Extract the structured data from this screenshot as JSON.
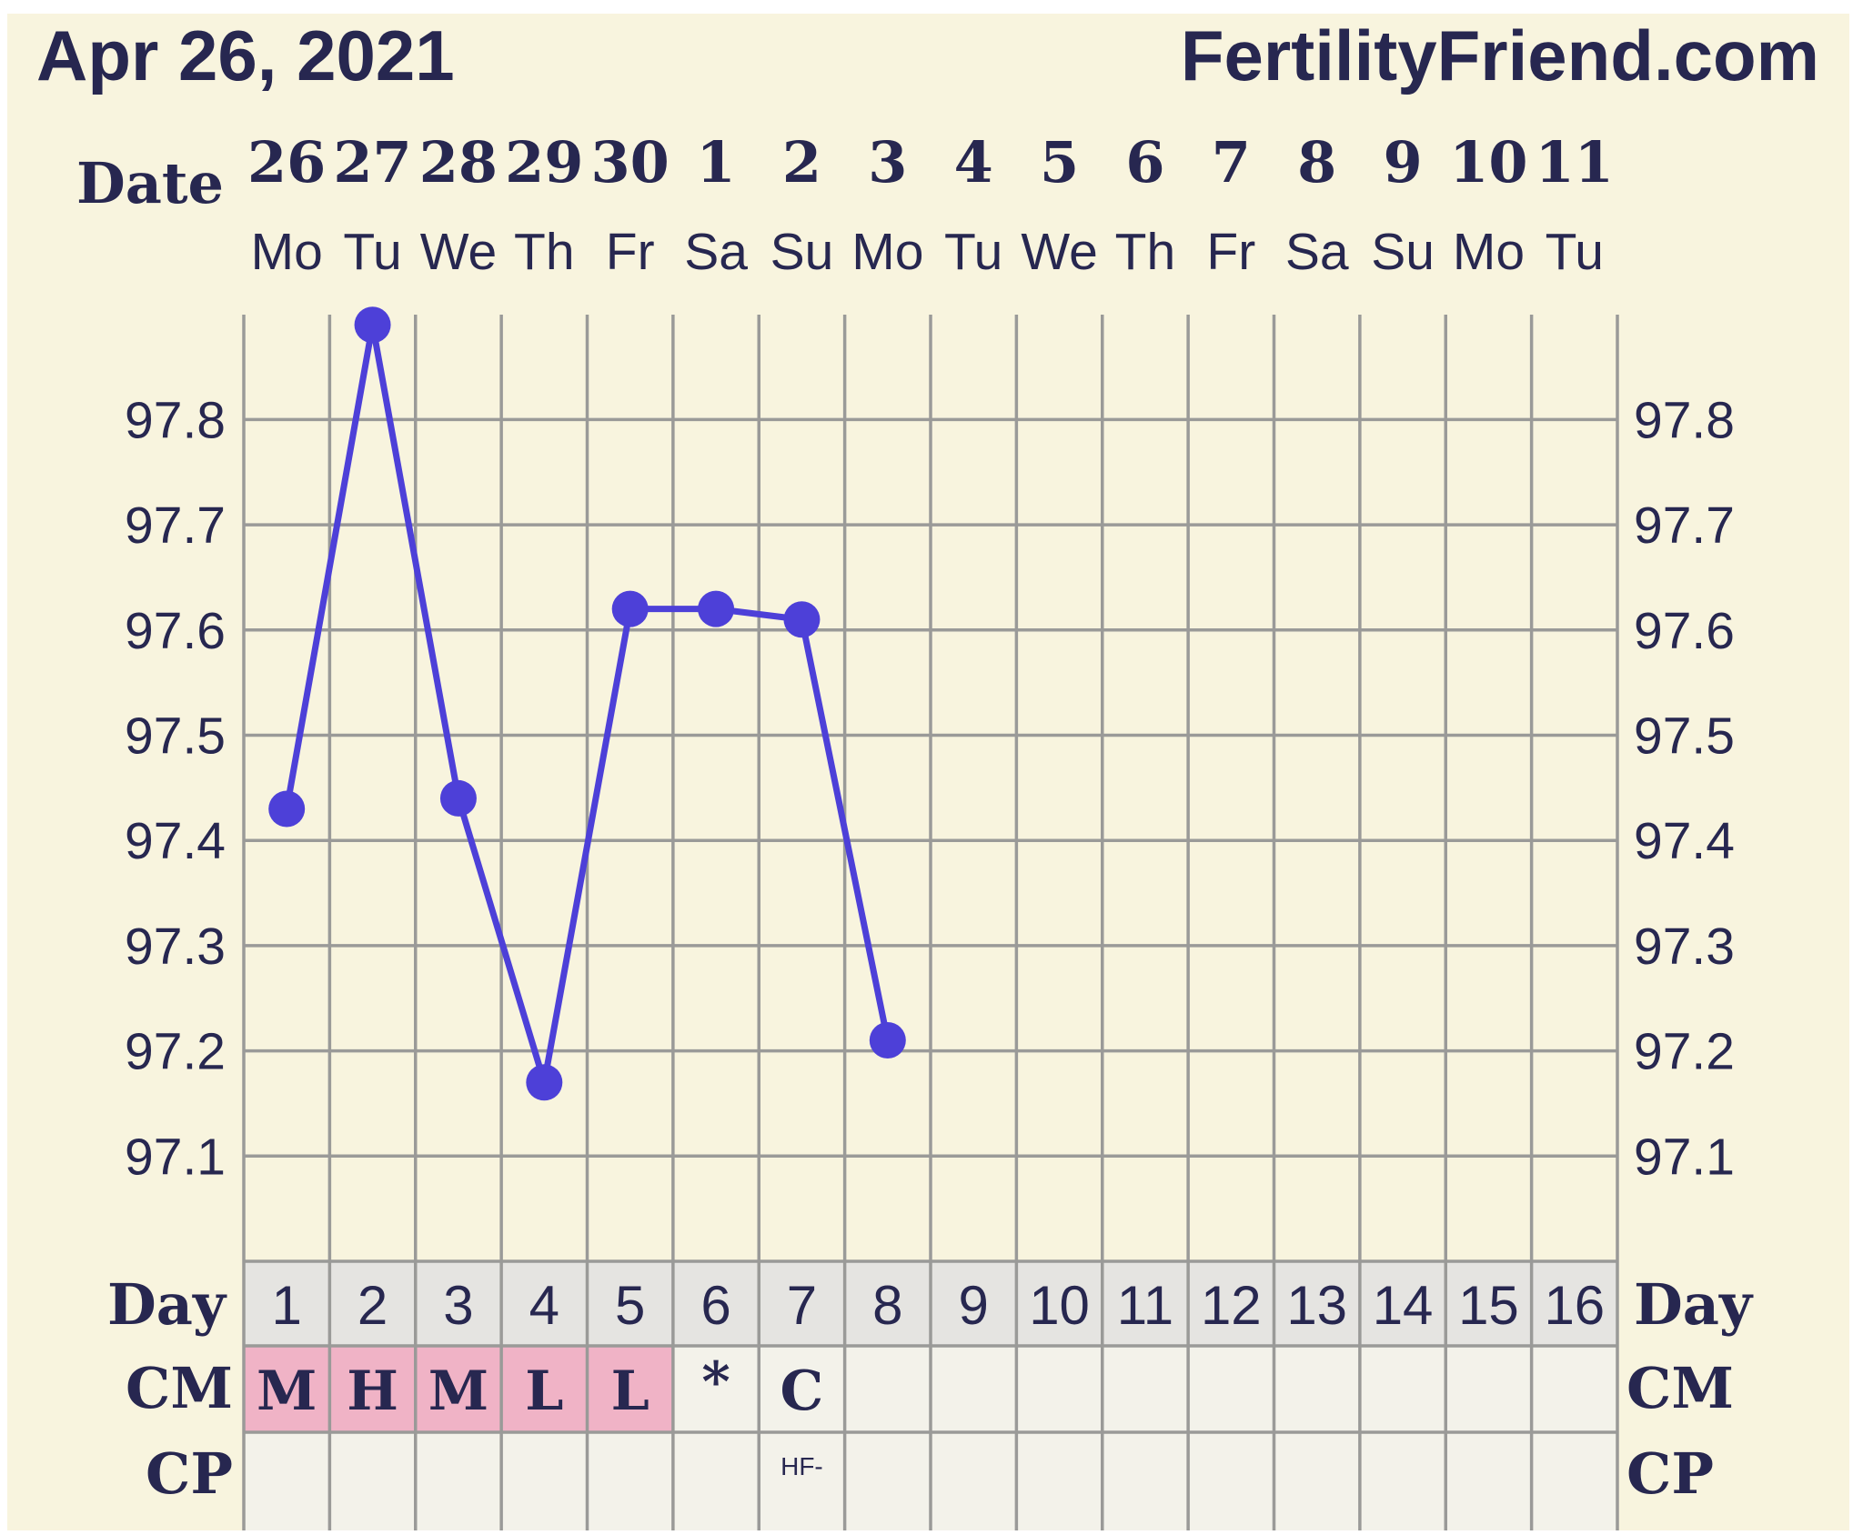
{
  "header": {
    "date": "Apr 26, 2021",
    "site": "FertilityFriend.com"
  },
  "labels": {
    "date_row": "Date",
    "day_row": "Day",
    "cm_row": "CM",
    "cp_row": "CP"
  },
  "colors": {
    "background": "#f8f4de",
    "temp_line": "#4d40d8",
    "cm_highlight": "#f0b3c6",
    "day_row_fill": "#e5e4e1",
    "grid": "#9a9a98",
    "text": "#272750"
  },
  "chart_data": {
    "type": "line",
    "x": [
      "26",
      "27",
      "28",
      "29",
      "30",
      "1",
      "2",
      "3",
      "4",
      "5",
      "6",
      "7",
      "8",
      "9",
      "10",
      "11"
    ],
    "weekdays": [
      "Mo",
      "Tu",
      "We",
      "Th",
      "Fr",
      "Sa",
      "Su",
      "Mo",
      "Tu",
      "We",
      "Th",
      "Fr",
      "Sa",
      "Su",
      "Mo",
      "Tu"
    ],
    "cycle_days": [
      "1",
      "2",
      "3",
      "4",
      "5",
      "6",
      "7",
      "8",
      "9",
      "10",
      "11",
      "12",
      "13",
      "14",
      "15",
      "16"
    ],
    "series": [
      {
        "values": [
          97.43,
          97.89,
          97.44,
          97.17,
          97.62,
          97.62,
          97.61,
          97.21,
          null,
          null,
          null,
          null,
          null,
          null,
          null,
          null
        ]
      }
    ],
    "yticks": [
      "97.1",
      "97.2",
      "97.3",
      "97.4",
      "97.5",
      "97.6",
      "97.7",
      "97.8"
    ],
    "ylim": [
      97.0,
      97.9
    ],
    "grid": true,
    "cm": [
      "M",
      "H",
      "M",
      "L",
      "L",
      "*",
      "C",
      "",
      "",
      "",
      "",
      "",
      "",
      "",
      "",
      ""
    ],
    "cm_highlighted": [
      true,
      true,
      true,
      true,
      true,
      false,
      false,
      false,
      false,
      false,
      false,
      false,
      false,
      false,
      false,
      false
    ],
    "cp": [
      "",
      "",
      "",
      "",
      "",
      "",
      "HF-",
      "",
      "",
      "",
      "",
      "",
      "",
      "",
      "",
      ""
    ]
  }
}
